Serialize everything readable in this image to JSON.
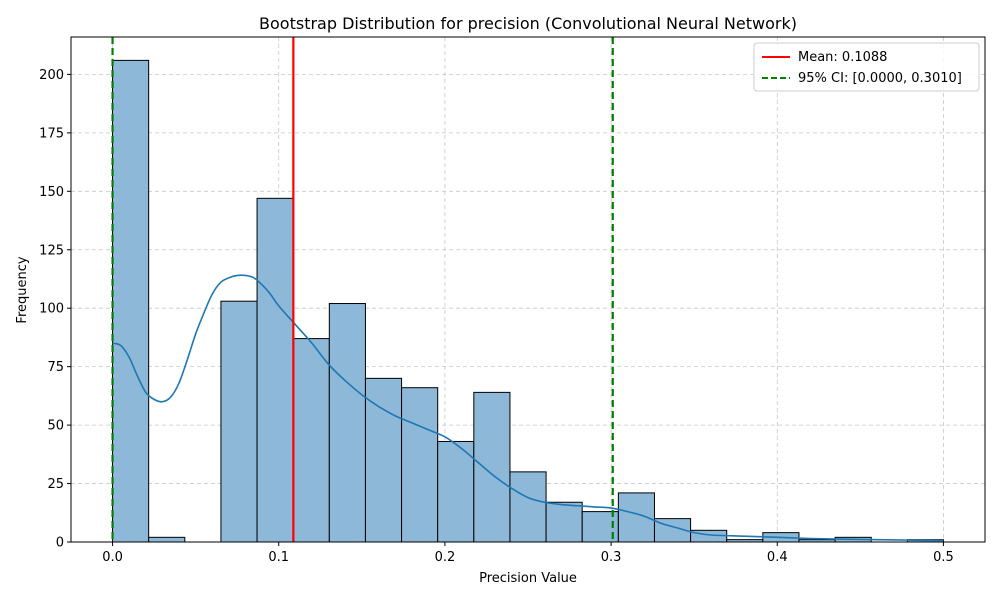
{
  "chart_data": {
    "type": "bar",
    "title": "Bootstrap Distribution for precision (Convolutional Neural Network)",
    "xlabel": "Precision Value",
    "ylabel": "Frequency",
    "xlim": [
      -0.025,
      0.525
    ],
    "ylim": [
      0,
      216
    ],
    "xticks": [
      0.0,
      0.1,
      0.2,
      0.3,
      0.4,
      0.5
    ],
    "xtick_labels": [
      "0.0",
      "0.1",
      "0.2",
      "0.3",
      "0.4",
      "0.5"
    ],
    "yticks": [
      0,
      25,
      50,
      75,
      100,
      125,
      150,
      175,
      200
    ],
    "ytick_labels": [
      "0",
      "25",
      "50",
      "75",
      "100",
      "125",
      "150",
      "175",
      "200"
    ],
    "grid": true,
    "legend_position": "top-right",
    "bin_start": 0.0,
    "bin_width": 0.02174,
    "counts": [
      206,
      2,
      0,
      103,
      147,
      87,
      102,
      70,
      66,
      43,
      64,
      30,
      17,
      13,
      21,
      10,
      5,
      1,
      4,
      1,
      2,
      0,
      1
    ],
    "kde": {
      "name": "KDE",
      "x": [
        0.0,
        0.005,
        0.01,
        0.015,
        0.02,
        0.025,
        0.03,
        0.035,
        0.04,
        0.045,
        0.05,
        0.055,
        0.06,
        0.065,
        0.07,
        0.075,
        0.08,
        0.085,
        0.09,
        0.095,
        0.1,
        0.11,
        0.12,
        0.13,
        0.14,
        0.15,
        0.16,
        0.17,
        0.18,
        0.19,
        0.2,
        0.21,
        0.22,
        0.23,
        0.24,
        0.25,
        0.26,
        0.27,
        0.28,
        0.29,
        0.3,
        0.31,
        0.32,
        0.33,
        0.34,
        0.35,
        0.36,
        0.38,
        0.4,
        0.42,
        0.44,
        0.46,
        0.48,
        0.5
      ],
      "y": [
        85,
        84,
        79,
        71,
        64,
        61,
        60,
        62,
        68,
        78,
        89,
        98,
        106,
        111,
        113,
        114,
        114,
        113,
        110,
        106,
        101,
        93,
        85,
        76,
        69,
        63,
        58,
        54,
        51,
        48,
        45,
        40,
        34,
        28,
        23,
        19,
        17,
        16,
        15.5,
        15,
        14.5,
        13,
        11,
        8,
        6,
        4,
        3,
        2.5,
        2,
        1.5,
        1.2,
        1,
        0.8,
        0.6
      ]
    },
    "mean": {
      "value": 0.1088,
      "label": "Mean: 0.1088",
      "color": "#ff0000"
    },
    "ci": {
      "low": 0.0,
      "high": 0.301,
      "label": "95% CI: [0.0000, 0.3010]",
      "color": "#008000"
    },
    "bar_color": "#8db8d8",
    "kde_color": "#1f77b4"
  }
}
